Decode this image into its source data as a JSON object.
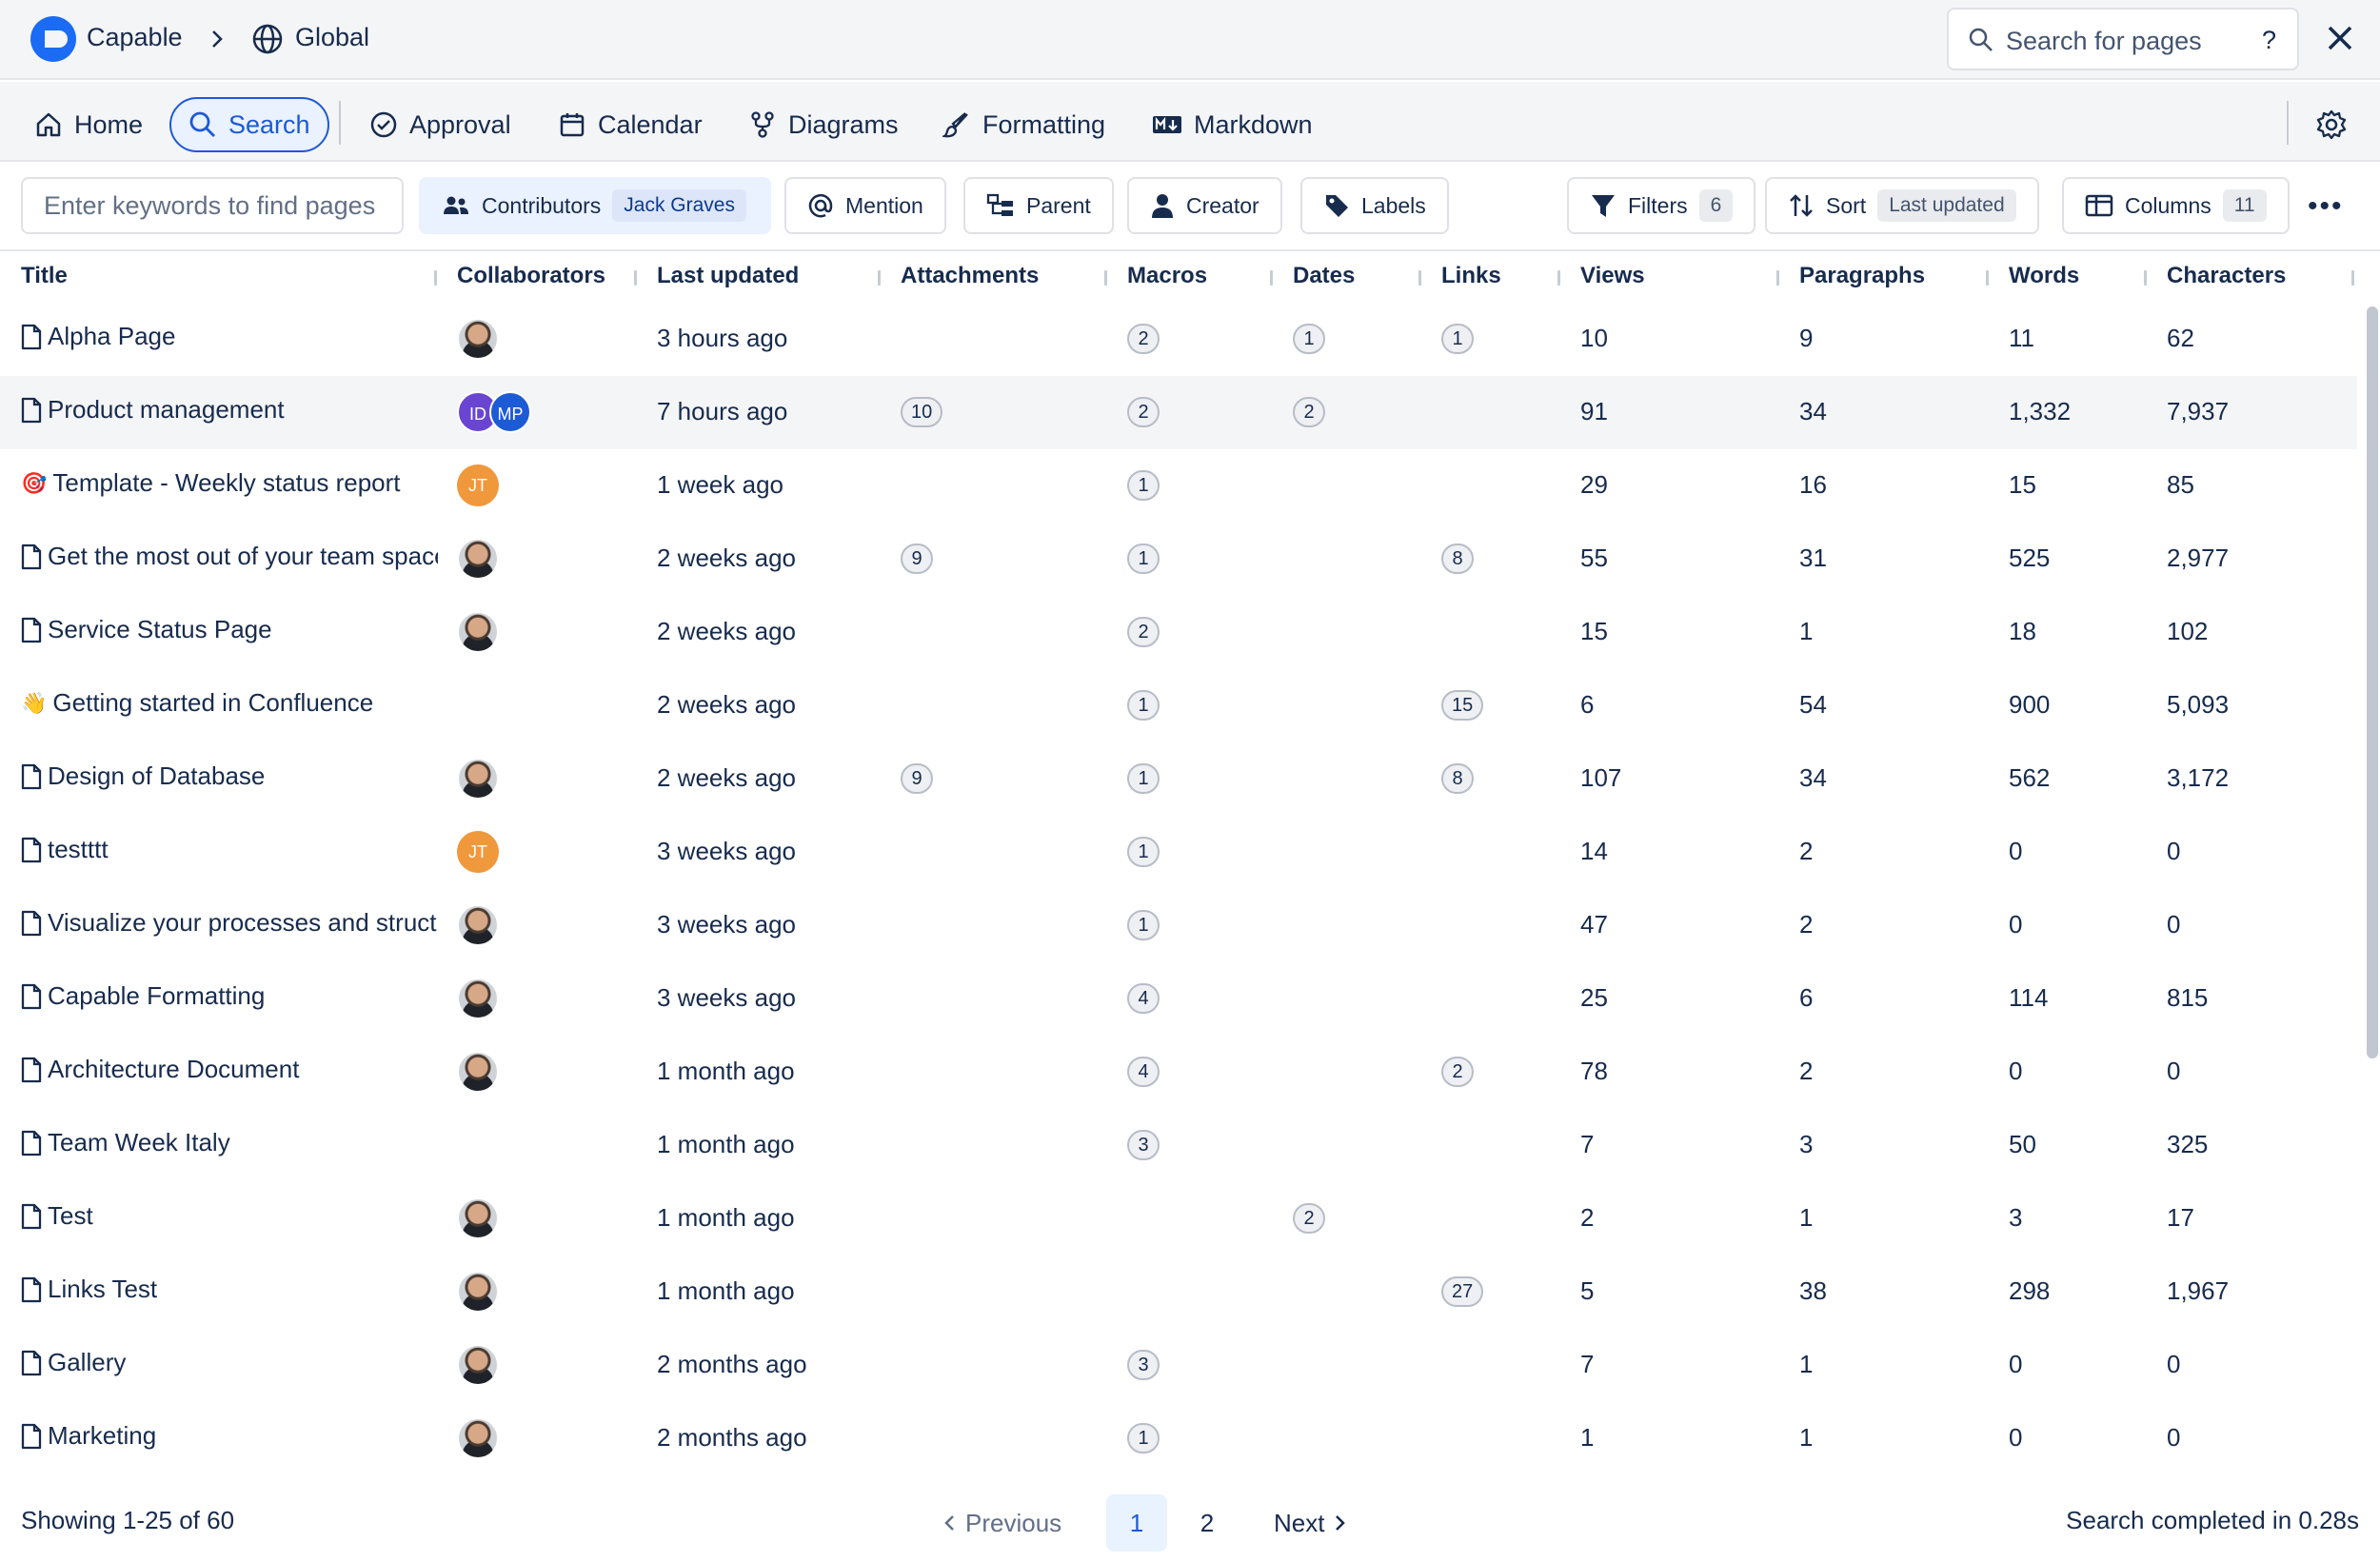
{
  "breadcrumb": {
    "app": "Capable",
    "space": "Global"
  },
  "top_search": {
    "placeholder": "Search for pages",
    "help": "?"
  },
  "nav": [
    {
      "id": "home",
      "label": "Home",
      "icon": "home-icon"
    },
    {
      "id": "search",
      "label": "Search",
      "icon": "search-icon",
      "active": true
    },
    {
      "id": "approval",
      "label": "Approval",
      "icon": "check-circle-icon"
    },
    {
      "id": "calendar",
      "label": "Calendar",
      "icon": "calendar-icon"
    },
    {
      "id": "diagrams",
      "label": "Diagrams",
      "icon": "diagram-icon"
    },
    {
      "id": "formatting",
      "label": "Formatting",
      "icon": "brush-icon"
    },
    {
      "id": "markdown",
      "label": "Markdown",
      "icon": "markdown-icon"
    }
  ],
  "filters": {
    "keyword_placeholder": "Enter keywords to find pages",
    "contributors": {
      "label": "Contributors",
      "value": "Jack Graves"
    },
    "mention": "Mention",
    "parent": "Parent",
    "creator": "Creator",
    "labels": "Labels",
    "filters": {
      "label": "Filters",
      "count": "6"
    },
    "sort": {
      "label": "Sort",
      "value": "Last updated"
    },
    "columns": {
      "label": "Columns",
      "count": "11"
    }
  },
  "columns": [
    "Title",
    "Collaborators",
    "Last updated",
    "Attachments",
    "Macros",
    "Dates",
    "Links",
    "Views",
    "Paragraphs",
    "Words",
    "Characters"
  ],
  "rows": [
    {
      "title": "Alpha Page",
      "icon": "doc",
      "collab": [
        "photo"
      ],
      "updated": "3 hours ago",
      "attachments": "",
      "macros": "2",
      "dates": "1",
      "links": "1",
      "views": "10",
      "paragraphs": "9",
      "words": "11",
      "characters": "62"
    },
    {
      "title": "Product management",
      "icon": "doc",
      "collab": [
        "ID",
        "MP"
      ],
      "updated": "7 hours ago",
      "attachments": "10",
      "macros": "2",
      "dates": "2",
      "links": "",
      "views": "91",
      "paragraphs": "34",
      "words": "1,332",
      "characters": "7,937",
      "highlight": true
    },
    {
      "title": "Template - Weekly status report",
      "icon": "🎯",
      "collab": [
        "JT"
      ],
      "updated": "1 week ago",
      "attachments": "",
      "macros": "1",
      "dates": "",
      "links": "",
      "views": "29",
      "paragraphs": "16",
      "words": "15",
      "characters": "85"
    },
    {
      "title": "Get the most out of your team space",
      "icon": "doc",
      "collab": [
        "photo"
      ],
      "updated": "2 weeks ago",
      "attachments": "9",
      "macros": "1",
      "dates": "",
      "links": "8",
      "views": "55",
      "paragraphs": "31",
      "words": "525",
      "characters": "2,977"
    },
    {
      "title": "Service Status Page",
      "icon": "doc",
      "collab": [
        "photo"
      ],
      "updated": "2 weeks ago",
      "attachments": "",
      "macros": "2",
      "dates": "",
      "links": "",
      "views": "15",
      "paragraphs": "1",
      "words": "18",
      "characters": "102"
    },
    {
      "title": "Getting started in Confluence",
      "icon": "👋",
      "collab": [],
      "updated": "2 weeks ago",
      "attachments": "",
      "macros": "1",
      "dates": "",
      "links": "15",
      "views": "6",
      "paragraphs": "54",
      "words": "900",
      "characters": "5,093"
    },
    {
      "title": "Design of Database",
      "icon": "doc",
      "collab": [
        "photo"
      ],
      "updated": "2 weeks ago",
      "attachments": "9",
      "macros": "1",
      "dates": "",
      "links": "8",
      "views": "107",
      "paragraphs": "34",
      "words": "562",
      "characters": "3,172"
    },
    {
      "title": "testttt",
      "icon": "doc",
      "collab": [
        "JT"
      ],
      "updated": "3 weeks ago",
      "attachments": "",
      "macros": "1",
      "dates": "",
      "links": "",
      "views": "14",
      "paragraphs": "2",
      "words": "0",
      "characters": "0"
    },
    {
      "title": "Visualize your processes and structures",
      "icon": "doc",
      "collab": [
        "photo"
      ],
      "updated": "3 weeks ago",
      "attachments": "",
      "macros": "1",
      "dates": "",
      "links": "",
      "views": "47",
      "paragraphs": "2",
      "words": "0",
      "characters": "0"
    },
    {
      "title": "Capable Formatting",
      "icon": "doc",
      "collab": [
        "photo"
      ],
      "updated": "3 weeks ago",
      "attachments": "",
      "macros": "4",
      "dates": "",
      "links": "",
      "views": "25",
      "paragraphs": "6",
      "words": "114",
      "characters": "815"
    },
    {
      "title": "Architecture Document",
      "icon": "doc",
      "collab": [
        "photo"
      ],
      "updated": "1 month ago",
      "attachments": "",
      "macros": "4",
      "dates": "",
      "links": "2",
      "views": "78",
      "paragraphs": "2",
      "words": "0",
      "characters": "0"
    },
    {
      "title": "Team Week Italy",
      "icon": "doc",
      "collab": [],
      "updated": "1 month ago",
      "attachments": "",
      "macros": "3",
      "dates": "",
      "links": "",
      "views": "7",
      "paragraphs": "3",
      "words": "50",
      "characters": "325"
    },
    {
      "title": "Test",
      "icon": "doc",
      "collab": [
        "photo"
      ],
      "updated": "1 month ago",
      "attachments": "",
      "macros": "",
      "dates": "2",
      "links": "",
      "views": "2",
      "paragraphs": "1",
      "words": "3",
      "characters": "17"
    },
    {
      "title": "Links Test",
      "icon": "doc",
      "collab": [
        "photo"
      ],
      "updated": "1 month ago",
      "attachments": "",
      "macros": "",
      "dates": "",
      "links": "27",
      "views": "5",
      "paragraphs": "38",
      "words": "298",
      "characters": "1,967"
    },
    {
      "title": "Gallery",
      "icon": "doc",
      "collab": [
        "photo"
      ],
      "updated": "2 months ago",
      "attachments": "",
      "macros": "3",
      "dates": "",
      "links": "",
      "views": "7",
      "paragraphs": "1",
      "words": "0",
      "characters": "0"
    },
    {
      "title": "Marketing",
      "icon": "doc",
      "collab": [
        "photo"
      ],
      "updated": "2 months ago",
      "attachments": "",
      "macros": "1",
      "dates": "",
      "links": "",
      "views": "1",
      "paragraphs": "1",
      "words": "0",
      "characters": "0"
    }
  ],
  "footer": {
    "showing": "Showing 1-25 of 60",
    "previous": "Previous",
    "pages": [
      "1",
      "2"
    ],
    "current_page": "1",
    "next": "Next",
    "status": "Search completed in 0.28s"
  },
  "colors": {
    "accent": "#1c5ad6",
    "logo": "#1b6bf5",
    "header_bg": "#f4f5f7"
  }
}
